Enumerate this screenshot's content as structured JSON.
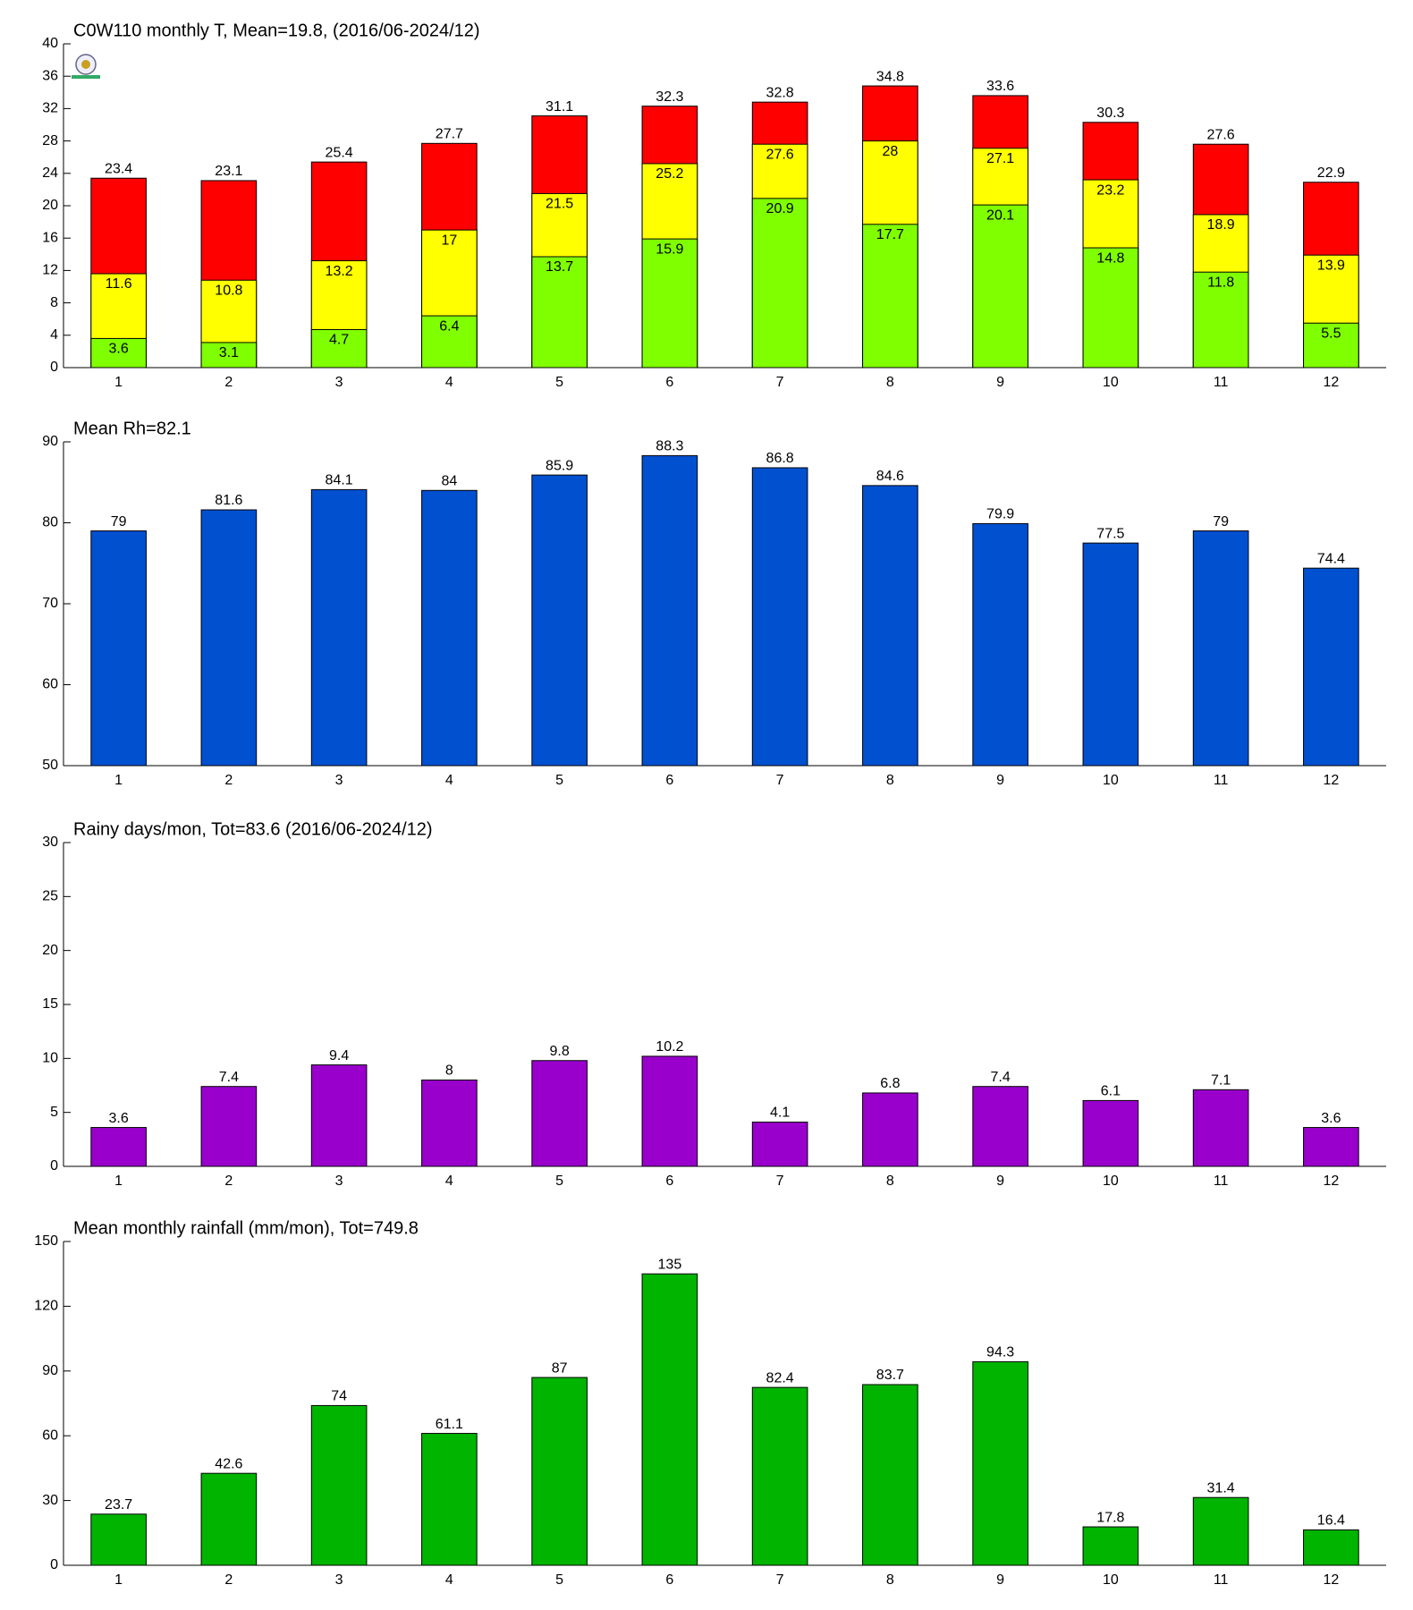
{
  "chart_data": [
    {
      "type": "bar",
      "title": "C0W110 monthly T, Mean=19.8, (2016/06-2024/12)",
      "categories": [
        "1",
        "2",
        "3",
        "4",
        "5",
        "6",
        "7",
        "8",
        "9",
        "10",
        "11",
        "12"
      ],
      "series": [
        {
          "color": "#ff0000",
          "values": [
            23.4,
            23.1,
            25.4,
            27.7,
            31.1,
            32.3,
            32.8,
            34.8,
            33.6,
            30.3,
            27.6,
            22.9
          ]
        },
        {
          "color": "#ffff00",
          "values": [
            11.6,
            10.8,
            13.2,
            17,
            21.5,
            25.2,
            27.6,
            28,
            27.1,
            23.2,
            18.9,
            13.9
          ]
        },
        {
          "color": "#80ff00",
          "values": [
            3.6,
            3.1,
            4.7,
            6.4,
            13.7,
            15.9,
            20.9,
            17.7,
            20.1,
            14.8,
            11.8,
            5.5
          ]
        }
      ],
      "ylim": [
        0,
        40
      ],
      "yticks": [
        0,
        4,
        8,
        12,
        16,
        20,
        24,
        28,
        32,
        36,
        40
      ]
    },
    {
      "type": "bar",
      "title": "Mean Rh=82.1",
      "categories": [
        "1",
        "2",
        "3",
        "4",
        "5",
        "6",
        "7",
        "8",
        "9",
        "10",
        "11",
        "12"
      ],
      "series": [
        {
          "color": "#0050d0",
          "values": [
            79,
            81.6,
            84.1,
            84,
            85.9,
            88.3,
            86.8,
            84.6,
            79.9,
            77.5,
            79,
            74.4
          ]
        }
      ],
      "ylim": [
        50,
        90
      ],
      "yticks": [
        50,
        60,
        70,
        80,
        90
      ]
    },
    {
      "type": "bar",
      "title": "Rainy days/mon, Tot=83.6 (2016/06-2024/12)",
      "categories": [
        "1",
        "2",
        "3",
        "4",
        "5",
        "6",
        "7",
        "8",
        "9",
        "10",
        "11",
        "12"
      ],
      "series": [
        {
          "color": "#9900cc",
          "values": [
            3.6,
            7.4,
            9.4,
            8,
            9.8,
            10.2,
            4.1,
            6.8,
            7.4,
            6.1,
            7.1,
            3.6
          ]
        }
      ],
      "ylim": [
        0,
        30
      ],
      "yticks": [
        0,
        5,
        10,
        15,
        20,
        25,
        30
      ]
    },
    {
      "type": "bar",
      "title": "Mean monthly rainfall (mm/mon), Tot=749.8",
      "categories": [
        "1",
        "2",
        "3",
        "4",
        "5",
        "6",
        "7",
        "8",
        "9",
        "10",
        "11",
        "12"
      ],
      "series": [
        {
          "color": "#00b400",
          "values": [
            23.7,
            42.6,
            74,
            61.1,
            87,
            135,
            82.4,
            83.7,
            94.3,
            17.8,
            31.4,
            16.4
          ]
        }
      ],
      "ylim": [
        0,
        150
      ],
      "yticks": [
        0,
        30,
        60,
        90,
        120,
        150
      ]
    }
  ]
}
